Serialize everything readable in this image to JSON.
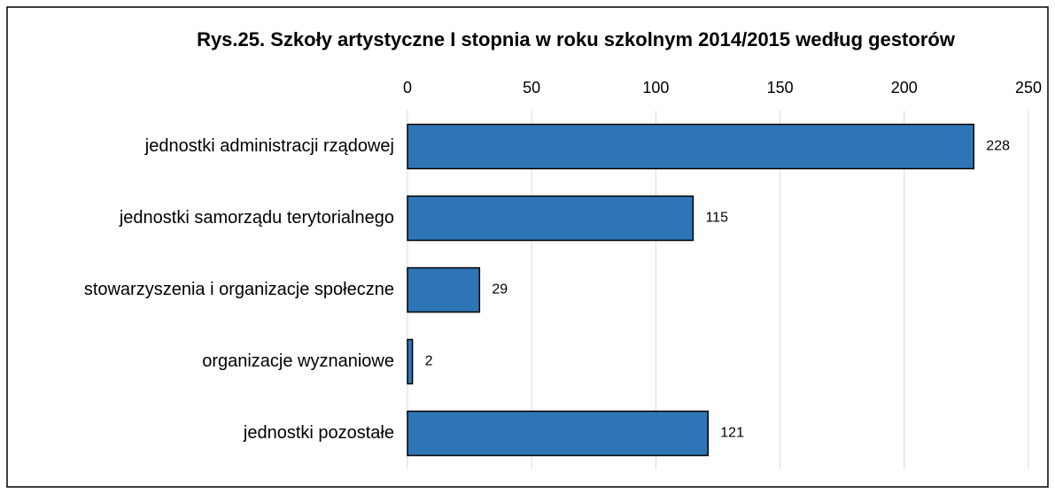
{
  "chart_data": {
    "type": "bar",
    "orientation": "horizontal",
    "title": "Rys.25. Szkoły artystyczne I stopnia w roku szkolnym 2014/2015 według gestorów",
    "categories": [
      "jednostki administracji rządowej",
      "jednostki samorządu terytorialnego",
      "stowarzyszenia i organizacje społeczne",
      "organizacje wyznaniowe",
      "jednostki pozostałe"
    ],
    "values": [
      228,
      115,
      29,
      2,
      121
    ],
    "color": "#2e75b6",
    "xlim": [
      0,
      250
    ],
    "xticks": [
      0,
      50,
      100,
      150,
      200,
      250
    ],
    "grid": true
  }
}
